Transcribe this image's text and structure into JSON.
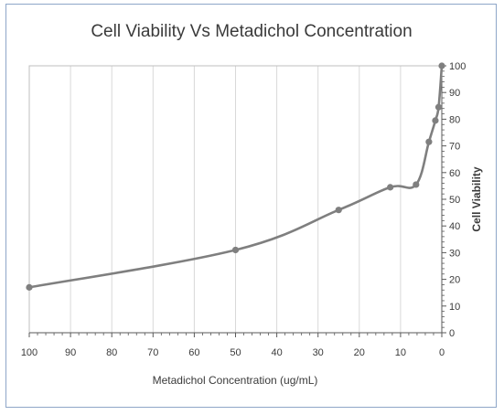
{
  "chart_data": {
    "type": "line",
    "title": "Cell Viability Vs Metadichol Concentration",
    "xlabel": "Metadichol Concentration (ug/mL)",
    "ylabel": "Cell Viability",
    "x_reversed": true,
    "xlim": [
      0,
      100
    ],
    "ylim": [
      0,
      100
    ],
    "x_ticks": [
      100,
      90,
      80,
      70,
      60,
      50,
      40,
      30,
      20,
      10,
      0
    ],
    "y_ticks": [
      0,
      10,
      20,
      30,
      40,
      50,
      60,
      70,
      80,
      90,
      100
    ],
    "grid": "vertical",
    "y_axis_position": "right",
    "line_color": "#7f7f7f",
    "series": [
      {
        "x": [
          100,
          50,
          25,
          12.5,
          6.25,
          3.125,
          1.56,
          0.78,
          0
        ],
        "y": [
          17,
          31,
          46,
          54.5,
          55.5,
          71.5,
          79.5,
          84.5,
          100
        ]
      }
    ]
  }
}
